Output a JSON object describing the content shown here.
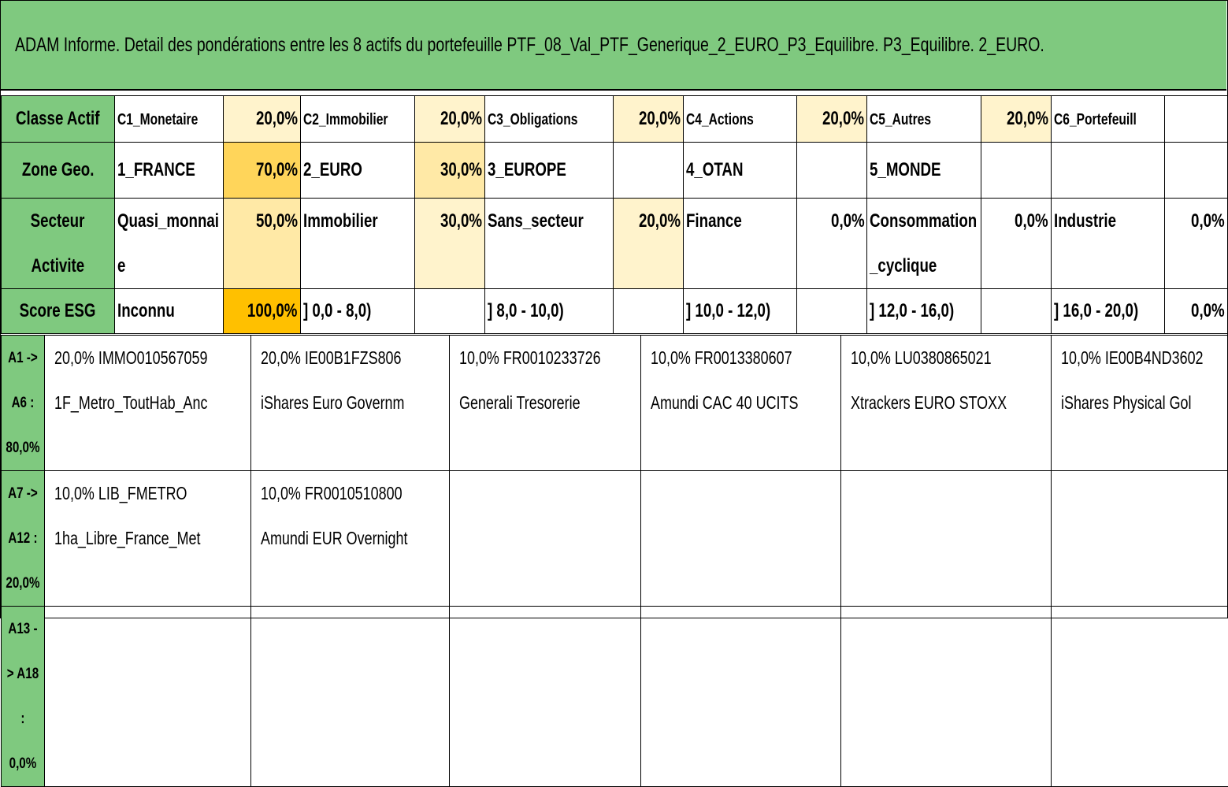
{
  "title": "ADAM Informe. Detail des pondérations entre les 8 actifs du portefeuille PTF_08_Val_PTF_Generique_2_EURO_P3_Equilibre. P3_Equilibre. 2_EURO.",
  "classe_actif": {
    "label": "Classe Actif",
    "items": [
      {
        "name": "C1_Monetaire",
        "pct": "20,0%"
      },
      {
        "name": "C2_Immobilier",
        "pct": "20,0%"
      },
      {
        "name": "C3_Obligations",
        "pct": "20,0%"
      },
      {
        "name": "C4_Actions",
        "pct": "20,0%"
      },
      {
        "name": "C5_Autres",
        "pct": "20,0%"
      },
      {
        "name": "C6_Portefeuill",
        "pct": ""
      }
    ]
  },
  "zone_geo": {
    "label": "Zone Geo.",
    "items": [
      {
        "name": "1_FRANCE",
        "pct": "70,0%"
      },
      {
        "name": "2_EURO",
        "pct": "30,0%"
      },
      {
        "name": "3_EUROPE",
        "pct": ""
      },
      {
        "name": "4_OTAN",
        "pct": ""
      },
      {
        "name": "5_MONDE",
        "pct": ""
      },
      {
        "name": "",
        "pct": ""
      }
    ]
  },
  "secteur": {
    "label_line1": "Secteur",
    "label_line2": "Activite",
    "items": [
      {
        "name": "Quasi_monnaie",
        "pct": "50,0%"
      },
      {
        "name": "Immobilier",
        "pct": "30,0%"
      },
      {
        "name": "Sans_secteur",
        "pct": "20,0%"
      },
      {
        "name": "Finance",
        "pct": "0,0%"
      },
      {
        "name": "Consommation_cyclique",
        "pct": "0,0%"
      },
      {
        "name": "Industrie",
        "pct": "0,0%"
      }
    ]
  },
  "score_esg": {
    "label": "Score ESG",
    "items": [
      {
        "name": "Inconnu",
        "pct": "100,0%"
      },
      {
        "name": "] 0,0 - 8,0)",
        "pct": ""
      },
      {
        "name": "] 8,0 - 10,0)",
        "pct": ""
      },
      {
        "name": "] 10,0 - 12,0)",
        "pct": ""
      },
      {
        "name": "] 12,0 - 16,0)",
        "pct": ""
      },
      {
        "name": "] 16,0 - 20,0)",
        "pct": "0,0%"
      }
    ]
  },
  "asset_rows": [
    {
      "label_line1": "A1 -> A6 :",
      "label_line2": "80,0%",
      "assets": [
        {
          "line1": "20,0% IMMO010567059",
          "line2": "1F_Metro_ToutHab_Anc"
        },
        {
          "line1": "20,0% IE00B1FZS806",
          "line2": "iShares Euro Governm"
        },
        {
          "line1": "10,0% FR0010233726",
          "line2": "Generali Tresorerie"
        },
        {
          "line1": "10,0% FR0013380607",
          "line2": "Amundi CAC 40 UCITS"
        },
        {
          "line1": "10,0% LU0380865021",
          "line2": "Xtrackers EURO STOXX"
        },
        {
          "line1": "10,0% IE00B4ND3602",
          "line2": "iShares Physical Gol"
        }
      ]
    },
    {
      "label_line1": "A7 -> A12 :",
      "label_line2": "20,0%",
      "assets": [
        {
          "line1": "10,0% LIB_FMETRO",
          "line2": "1ha_Libre_France_Met"
        },
        {
          "line1": "10,0% FR0010510800",
          "line2": "Amundi EUR Overnight"
        },
        {
          "line1": "",
          "line2": ""
        },
        {
          "line1": "",
          "line2": ""
        },
        {
          "line1": "",
          "line2": ""
        },
        {
          "line1": "",
          "line2": ""
        }
      ]
    },
    {
      "label_line1": "A13 -> A18 :",
      "label_line2": "0,0%",
      "assets": [
        {
          "line1": "",
          "line2": ""
        },
        {
          "line1": "",
          "line2": ""
        },
        {
          "line1": "",
          "line2": ""
        },
        {
          "line1": "",
          "line2": ""
        },
        {
          "line1": "",
          "line2": ""
        },
        {
          "line1": "",
          "line2": ""
        }
      ]
    }
  ],
  "colors": {
    "header_green": "#7fc97f",
    "weight_light": "#fff3cc",
    "weight_mid": "#ffe9a6",
    "weight_strong": "#ffd55a",
    "weight_full": "#ffc000"
  }
}
